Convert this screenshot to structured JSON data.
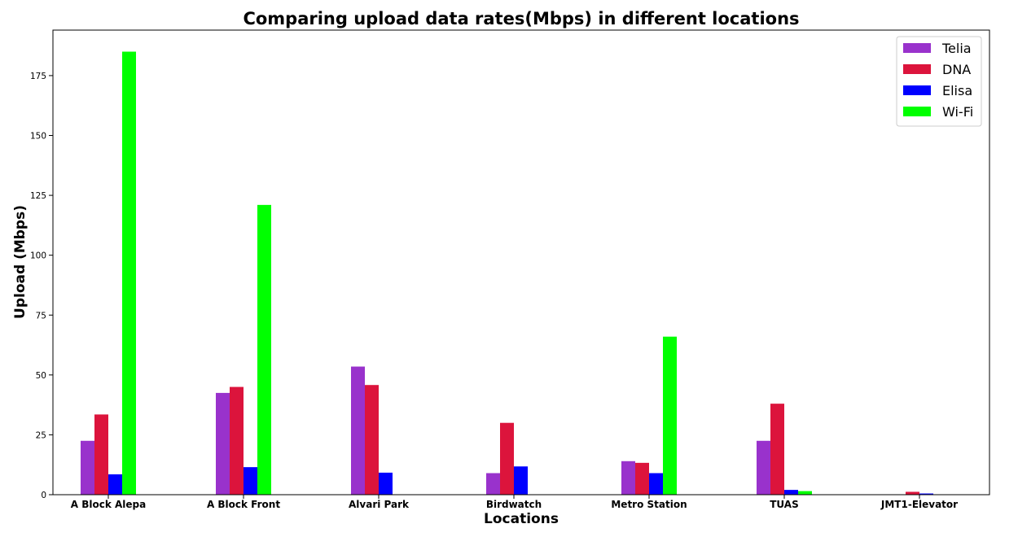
{
  "chart_data": {
    "type": "bar",
    "title": "Comparing upload data rates(Mbps) in different locations",
    "xlabel": "Locations",
    "ylabel": "Upload (Mbps)",
    "ylim": [
      0,
      194
    ],
    "yticks": [
      0,
      25,
      50,
      75,
      100,
      125,
      150,
      175
    ],
    "grid": false,
    "legend_position": "top-right",
    "categories": [
      "A Block Alepa",
      "A Block Front",
      "Alvari Park",
      "Birdwatch",
      "Metro Station",
      "TUAS",
      "JMT1-Elevator"
    ],
    "series": [
      {
        "name": "Telia",
        "color": "#9932CC",
        "values": [
          22.5,
          42.5,
          53.5,
          9.0,
          14.0,
          22.5,
          0
        ]
      },
      {
        "name": "DNA",
        "color": "#DC143C",
        "values": [
          33.5,
          45.0,
          45.8,
          30.0,
          13.3,
          38.0,
          1.2
        ]
      },
      {
        "name": "Elisa",
        "color": "#0000FF",
        "values": [
          8.5,
          11.5,
          9.2,
          11.8,
          9.0,
          2.0,
          0.5
        ]
      },
      {
        "name": "Wi-Fi",
        "color": "#00FF00",
        "values": [
          185.0,
          121.0,
          0,
          0,
          66.0,
          1.5,
          0
        ]
      }
    ]
  }
}
